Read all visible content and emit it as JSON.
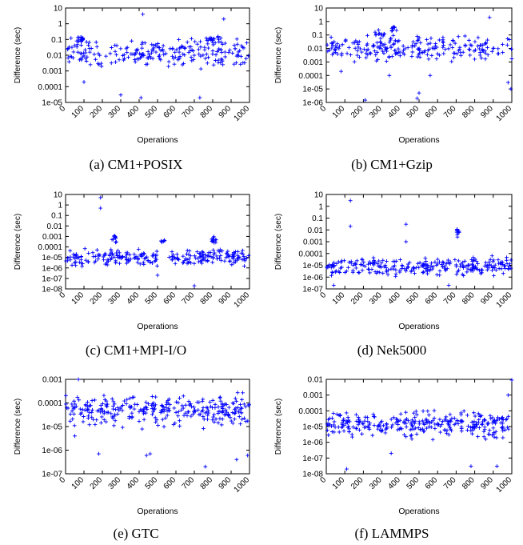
{
  "figure": {
    "panels": [
      {
        "id": "a",
        "caption": "(a)  CM1+POSIX"
      },
      {
        "id": "b",
        "caption": "(b)  CM1+Gzip"
      },
      {
        "id": "c",
        "caption": "(c)  CM1+MPI-I/O"
      },
      {
        "id": "d",
        "caption": "(d)  Nek5000"
      },
      {
        "id": "e",
        "caption": "(e)  GTC"
      },
      {
        "id": "f",
        "caption": "(f)  LAMMPS"
      }
    ]
  },
  "colors": {
    "marker": "#0000ff",
    "axis": "#000000",
    "text": "#000000"
  },
  "chart_data": [
    {
      "id": "a",
      "type": "scatter",
      "marker": "+",
      "xlabel": "Operations",
      "ylabel": "Difference (sec)",
      "xlim": [
        0,
        1000
      ],
      "ylim": [
        1e-05,
        10
      ],
      "yscale": "log",
      "xticks": [
        "0",
        "100",
        "200",
        "300",
        "400",
        "500",
        "600",
        "700",
        "800",
        "900",
        "1000"
      ],
      "yticks": [
        "10",
        "1",
        "0.1",
        "0.01",
        "0.001",
        "0.0001",
        "1e-05"
      ],
      "clusters": [
        {
          "x": [
            0,
            1000
          ],
          "y": [
            0.0008,
            0.3
          ],
          "n": 230
        },
        {
          "x": [
            60,
            100
          ],
          "y": [
            0.05,
            0.2
          ],
          "n": 14
        },
        {
          "x": [
            750,
            850
          ],
          "y": [
            0.05,
            0.2
          ],
          "n": 16
        }
      ],
      "outliers": [
        [
          420,
          4
        ],
        [
          860,
          2
        ],
        [
          300,
          3e-05
        ],
        [
          410,
          2e-05
        ],
        [
          730,
          2e-05
        ],
        [
          100,
          0.0002
        ]
      ]
    },
    {
      "id": "b",
      "type": "scatter",
      "marker": "+",
      "xlabel": "Operations",
      "ylabel": "Difference (sec)",
      "xlim": [
        0,
        1000
      ],
      "ylim": [
        1e-06,
        10
      ],
      "yscale": "log",
      "xticks": [
        "0",
        "100",
        "200",
        "300",
        "400",
        "500",
        "600",
        "700",
        "800",
        "900",
        "1000"
      ],
      "yticks": [
        "10",
        "1",
        "0.1",
        "0.01",
        "0.001",
        "0.0001",
        "1e-05",
        "1e-06"
      ],
      "clusters": [
        {
          "x": [
            0,
            1000
          ],
          "y": [
            0.0005,
            0.2
          ],
          "n": 230
        },
        {
          "x": [
            350,
            380
          ],
          "y": [
            0.1,
            0.8
          ],
          "n": 10
        },
        {
          "x": [
            250,
            320
          ],
          "y": [
            0.05,
            0.3
          ],
          "n": 12
        }
      ],
      "outliers": [
        [
          880,
          2
        ],
        [
          490,
          2e-06
        ],
        [
          500,
          5e-06
        ],
        [
          210,
          1.5e-06
        ],
        [
          980,
          3e-05
        ],
        [
          995,
          1e-05
        ],
        [
          560,
          0.0001
        ],
        [
          340,
          0.0001
        ],
        [
          80,
          0.0002
        ]
      ]
    },
    {
      "id": "c",
      "type": "scatter",
      "marker": "+",
      "xlabel": "Operations",
      "ylabel": "Difference (sec)",
      "xlim": [
        0,
        1000
      ],
      "ylim": [
        1e-08,
        10
      ],
      "yscale": "log",
      "xticks": [
        "0",
        "100",
        "200",
        "300",
        "400",
        "500",
        "600",
        "700",
        "800",
        "900",
        "1000"
      ],
      "yticks": [
        "10",
        "1",
        "0.1",
        "0.01",
        "0.001",
        "0.0001",
        "1e-05",
        "1e-06",
        "1e-07",
        "1e-08"
      ],
      "clusters": [
        {
          "x": [
            0,
            500
          ],
          "y": [
            1e-06,
            0.0001
          ],
          "n": 130
        },
        {
          "x": [
            560,
            1000
          ],
          "y": [
            1e-06,
            0.0001
          ],
          "n": 120
        },
        {
          "x": [
            250,
            280
          ],
          "y": [
            0.0002,
            0.003
          ],
          "n": 10
        },
        {
          "x": [
            780,
            830
          ],
          "y": [
            0.0002,
            0.001
          ],
          "n": 14
        },
        {
          "x": [
            520,
            550
          ],
          "y": [
            0.0002,
            0.0005
          ],
          "n": 6
        }
      ],
      "outliers": [
        [
          190,
          5
        ],
        [
          190,
          0.5
        ],
        [
          700,
          2e-08
        ],
        [
          500,
          2e-07
        ]
      ]
    },
    {
      "id": "d",
      "type": "scatter",
      "marker": "+",
      "xlabel": "Operations",
      "ylabel": "Difference (sec)",
      "xlim": [
        0,
        1000
      ],
      "ylim": [
        1e-07,
        10
      ],
      "yscale": "log",
      "xticks": [
        "0",
        "100",
        "200",
        "300",
        "400",
        "500",
        "600",
        "700",
        "800",
        "900",
        "1000"
      ],
      "yticks": [
        "10",
        "1",
        "0.1",
        "0.01",
        "0.001",
        "0.0001",
        "1e-05",
        "1e-06",
        "1e-07"
      ],
      "clusters": [
        {
          "x": [
            0,
            1000
          ],
          "y": [
            8e-07,
            0.0001
          ],
          "n": 260
        },
        {
          "x": [
            700,
            720
          ],
          "y": [
            0.001,
            0.04
          ],
          "n": 10
        }
      ],
      "outliers": [
        [
          130,
          3
        ],
        [
          130,
          0.02
        ],
        [
          430,
          0.03
        ],
        [
          430,
          0.001
        ],
        [
          40,
          2e-07
        ],
        [
          660,
          2e-07
        ]
      ]
    },
    {
      "id": "e",
      "type": "scatter",
      "marker": "+",
      "xlabel": "Operations",
      "ylabel": "Difference (sec)",
      "xlim": [
        0,
        1000
      ],
      "ylim": [
        1e-07,
        0.001
      ],
      "yscale": "log",
      "xticks": [
        "0",
        "100",
        "200",
        "300",
        "400",
        "500",
        "600",
        "700",
        "800",
        "900",
        "1000"
      ],
      "yticks": [
        "0.001",
        "0.0001",
        "1e-05",
        "1e-06",
        "1e-07"
      ],
      "clusters": [
        {
          "x": [
            0,
            1000
          ],
          "y": [
            6e-06,
            0.0004
          ],
          "n": 300
        }
      ],
      "outliers": [
        [
          70,
          0.001
        ],
        [
          180,
          7e-07
        ],
        [
          440,
          6e-07
        ],
        [
          460,
          7e-07
        ],
        [
          760,
          2e-07
        ],
        [
          930,
          4e-07
        ],
        [
          990,
          6e-07
        ],
        [
          50,
          4e-06
        ]
      ]
    },
    {
      "id": "f",
      "type": "scatter",
      "marker": "+",
      "xlabel": "Operations",
      "ylabel": "Difference (sec)",
      "xlim": [
        0,
        1000
      ],
      "ylim": [
        1e-08,
        0.01
      ],
      "yscale": "log",
      "xticks": [
        "0",
        "100",
        "200",
        "300",
        "400",
        "500",
        "600",
        "700",
        "800",
        "900",
        "1000"
      ],
      "yticks": [
        "0.01",
        "0.001",
        "0.0001",
        "1e-05",
        "1e-06",
        "1e-07",
        "1e-08"
      ],
      "clusters": [
        {
          "x": [
            0,
            1000
          ],
          "y": [
            1e-06,
            0.0002
          ],
          "n": 300
        }
      ],
      "outliers": [
        [
          1000,
          0.009
        ],
        [
          980,
          0.001
        ],
        [
          110,
          2e-08
        ],
        [
          780,
          3e-08
        ],
        [
          920,
          3e-08
        ],
        [
          350,
          2e-07
        ]
      ]
    }
  ]
}
